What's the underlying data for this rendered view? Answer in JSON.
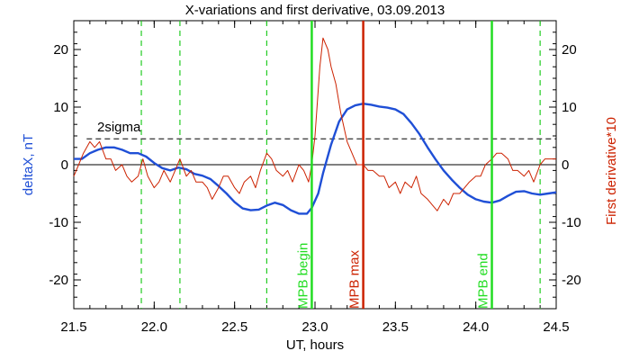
{
  "chart_data": {
    "type": "line",
    "title": "X-variations and first derivative, 03.09.2013",
    "xlabel": "UT, hours",
    "ylabel_left": "deltaX, nT",
    "ylabel_right": "First derivative*10",
    "xlim": [
      21.5,
      24.5
    ],
    "ylim": [
      -25,
      25
    ],
    "x_ticks": [
      "21.5",
      "22.0",
      "22.5",
      "23.0",
      "23.5",
      "24.0",
      "24.5"
    ],
    "y_ticks": [
      "20",
      "10",
      "0",
      "-10",
      "-20"
    ],
    "y_tick_values": [
      20,
      10,
      0,
      -10,
      -20
    ],
    "x_tick_values": [
      21.5,
      22.0,
      22.5,
      23.0,
      23.5,
      24.0,
      24.5
    ],
    "colors": {
      "deltax": "#1f4fd6",
      "derivative": "#cc2200",
      "green_line": "#22dd22",
      "red_line": "#cc2200",
      "green_dashed": "#22cc22"
    },
    "sigma_label": "2sigma",
    "sigma_level": 4.5,
    "zero_level": 0,
    "vertical_lines": [
      {
        "x": 22.98,
        "label": "MPB begin",
        "color": "green"
      },
      {
        "x": 23.3,
        "label": "MPB max",
        "color": "red"
      },
      {
        "x": 24.1,
        "label": "MPB end",
        "color": "green"
      }
    ],
    "dashed_lines_x": [
      21.92,
      22.16,
      22.7,
      24.4
    ],
    "series": [
      {
        "key": "deltax",
        "x": [
          21.5,
          21.55,
          21.6,
          21.65,
          21.7,
          21.75,
          21.8,
          21.85,
          21.9,
          21.95,
          22.0,
          22.05,
          22.1,
          22.15,
          22.2,
          22.25,
          22.3,
          22.35,
          22.4,
          22.45,
          22.5,
          22.55,
          22.6,
          22.65,
          22.7,
          22.75,
          22.8,
          22.85,
          22.9,
          22.95,
          22.98,
          23.02,
          23.05,
          23.1,
          23.15,
          23.2,
          23.25,
          23.3,
          23.35,
          23.4,
          23.45,
          23.5,
          23.55,
          23.6,
          23.65,
          23.7,
          23.75,
          23.8,
          23.85,
          23.9,
          23.95,
          24.0,
          24.05,
          24.1,
          24.15,
          24.2,
          24.25,
          24.3,
          24.35,
          24.4,
          24.45,
          24.5
        ],
        "y": [
          1,
          1,
          2,
          2.6,
          3,
          3,
          2.6,
          2,
          2,
          1.4,
          0.3,
          -0.6,
          -1,
          -0.5,
          -0.8,
          -1.6,
          -1.9,
          -2.5,
          -3.7,
          -5,
          -6.5,
          -7.6,
          -7.9,
          -7.8,
          -7.1,
          -6.6,
          -7,
          -7.9,
          -8.5,
          -8.5,
          -7.5,
          -5,
          -1.5,
          3.5,
          7.5,
          9.6,
          10.3,
          10.6,
          10.4,
          10.1,
          9.9,
          9.6,
          8.8,
          7.2,
          5.3,
          3,
          0.9,
          -1,
          -2.6,
          -4,
          -5.2,
          -6,
          -6.4,
          -6.6,
          -6.2,
          -5.4,
          -4.7,
          -4.6,
          -5,
          -5.2,
          -5,
          -4.8
        ]
      },
      {
        "key": "derivative",
        "x": [
          21.5,
          21.53,
          21.56,
          21.6,
          21.63,
          21.66,
          21.7,
          21.73,
          21.76,
          21.8,
          21.83,
          21.86,
          21.9,
          21.93,
          21.96,
          22.0,
          22.03,
          22.06,
          22.1,
          22.13,
          22.16,
          22.2,
          22.23,
          22.26,
          22.3,
          22.33,
          22.36,
          22.4,
          22.43,
          22.46,
          22.5,
          22.53,
          22.56,
          22.6,
          22.63,
          22.66,
          22.7,
          22.73,
          22.76,
          22.8,
          22.83,
          22.86,
          22.9,
          22.93,
          22.96,
          22.98,
          23.0,
          23.03,
          23.05,
          23.08,
          23.1,
          23.13,
          23.16,
          23.2,
          23.23,
          23.26,
          23.3,
          23.33,
          23.36,
          23.4,
          23.43,
          23.46,
          23.5,
          23.53,
          23.56,
          23.6,
          23.63,
          23.66,
          23.7,
          23.73,
          23.76,
          23.8,
          23.83,
          23.86,
          23.9,
          23.93,
          23.96,
          24.0,
          24.03,
          24.06,
          24.1,
          24.13,
          24.16,
          24.2,
          24.23,
          24.26,
          24.3,
          24.33,
          24.36,
          24.4,
          24.43,
          24.46,
          24.5
        ],
        "y": [
          -2,
          0,
          2,
          4,
          3,
          4,
          1,
          1,
          -1,
          0,
          -2,
          -3,
          -2,
          1,
          -2,
          -4,
          -3,
          -1,
          -3,
          -1,
          1,
          -2,
          -1,
          -3,
          -3,
          -4,
          -6,
          -4,
          -2,
          -2,
          -4,
          -5,
          -3,
          -2,
          -4,
          -1,
          2,
          1,
          -1,
          -2,
          -1,
          -3,
          0,
          -1,
          -3,
          0,
          5,
          17,
          22,
          20,
          17,
          14,
          9,
          4,
          2,
          0,
          0,
          -1,
          -1,
          -2,
          -2,
          -4,
          -3,
          -5,
          -3,
          -4,
          -2,
          -5,
          -6,
          -7,
          -8,
          -6,
          -7,
          -5,
          -5,
          -4,
          -3,
          -2,
          -2,
          0,
          1,
          2,
          2,
          1,
          -1,
          -1,
          -2,
          -1,
          -3,
          0,
          1,
          1,
          1
        ]
      }
    ]
  }
}
